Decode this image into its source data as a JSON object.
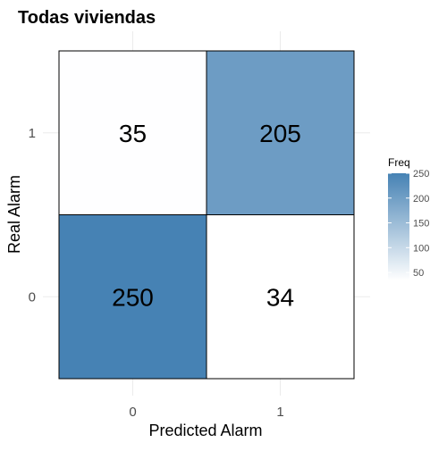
{
  "chart_data": {
    "type": "heatmap",
    "title": "Todas viviendas",
    "xlabel": "Predicted Alarm",
    "ylabel": "Real Alarm",
    "x_categories": [
      "0",
      "1"
    ],
    "y_categories": [
      "0",
      "1"
    ],
    "cells": [
      {
        "x": "0",
        "y": "1",
        "value": 35
      },
      {
        "x": "1",
        "y": "1",
        "value": 205
      },
      {
        "x": "0",
        "y": "0",
        "value": 250
      },
      {
        "x": "1",
        "y": "0",
        "value": 34
      }
    ],
    "legend": {
      "title": "Freq",
      "ticks": [
        50,
        100,
        150,
        200,
        250
      ],
      "range": [
        34,
        250
      ],
      "low_color": "#ffffff",
      "high_color": "#4682b4",
      "placement": "right"
    },
    "grid": true
  }
}
